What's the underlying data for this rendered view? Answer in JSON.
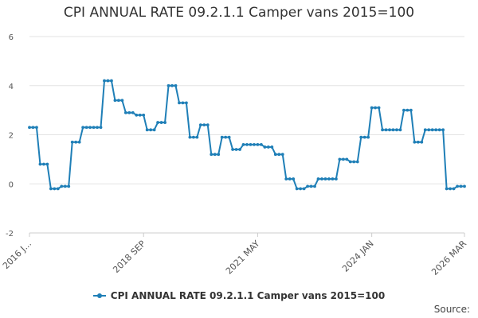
{
  "chart_data": {
    "type": "line",
    "title": "CPI ANNUAL RATE 09.2.1.1 Camper vans 2015=100",
    "xlabel": "",
    "ylabel": "",
    "ylim": [
      -2,
      6
    ],
    "y_ticks": [
      -2,
      0,
      2,
      4,
      6
    ],
    "grid": true,
    "legend_position": "bottom",
    "x_tick_labels": [
      "2016 J...",
      "2018 SEP",
      "2021 MAY",
      "2024 JAN",
      "2026 MAR"
    ],
    "x_tick_indices": [
      0,
      32,
      64,
      96,
      122
    ],
    "series": [
      {
        "name": "CPI ANNUAL RATE 09.2.1.1 Camper vans 2015=100",
        "color": "#1f7fb7",
        "values": [
          2.3,
          2.3,
          2.3,
          0.8,
          0.8,
          0.8,
          -0.2,
          -0.2,
          -0.2,
          -0.1,
          -0.1,
          -0.1,
          1.7,
          1.7,
          1.7,
          2.3,
          2.3,
          2.3,
          2.3,
          2.3,
          2.3,
          4.2,
          4.2,
          4.2,
          3.4,
          3.4,
          3.4,
          2.9,
          2.9,
          2.9,
          2.8,
          2.8,
          2.8,
          2.2,
          2.2,
          2.2,
          2.5,
          2.5,
          2.5,
          4.0,
          4.0,
          4.0,
          3.3,
          3.3,
          3.3,
          1.9,
          1.9,
          1.9,
          2.4,
          2.4,
          2.4,
          1.2,
          1.2,
          1.2,
          1.9,
          1.9,
          1.9,
          1.4,
          1.4,
          1.4,
          1.6,
          1.6,
          1.6,
          1.6,
          1.6,
          1.6,
          1.5,
          1.5,
          1.5,
          1.2,
          1.2,
          1.2,
          0.2,
          0.2,
          0.2,
          -0.2,
          -0.2,
          -0.2,
          -0.1,
          -0.1,
          -0.1,
          0.2,
          0.2,
          0.2,
          0.2,
          0.2,
          0.2,
          1.0,
          1.0,
          1.0,
          0.9,
          0.9,
          0.9,
          1.9,
          1.9,
          1.9,
          3.1,
          3.1,
          3.1,
          2.2,
          2.2,
          2.2,
          2.2,
          2.2,
          2.2,
          3.0,
          3.0,
          3.0,
          1.7,
          1.7,
          1.7,
          2.2,
          2.2,
          2.2,
          2.2,
          2.2,
          2.2,
          -0.2,
          -0.2,
          -0.2,
          -0.1,
          -0.1,
          -0.1
        ]
      }
    ]
  },
  "source_label": "Source:"
}
